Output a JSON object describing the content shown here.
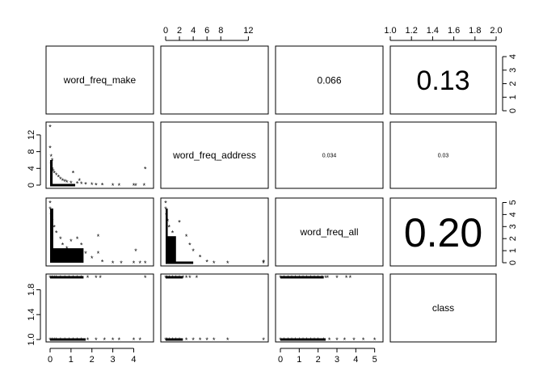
{
  "chart_data": {
    "type": "scatter",
    "matrix": "pairs",
    "variables": [
      "word_freq_make",
      "word_freq_address",
      "word_freq_all",
      "class"
    ],
    "ranges": {
      "word_freq_make": [
        0,
        4.6
      ],
      "word_freq_address": [
        0,
        14.3
      ],
      "word_freq_all": [
        0,
        5.1
      ],
      "class": [
        1,
        2
      ]
    },
    "ticks": {
      "word_freq_make": [
        0,
        1,
        2,
        3,
        4
      ],
      "word_freq_address": [
        0,
        2,
        4,
        6,
        8,
        12
      ],
      "word_freq_all": [
        0,
        1,
        2,
        3,
        4,
        5
      ],
      "class": [
        1.0,
        1.2,
        1.4,
        1.6,
        1.8,
        2.0
      ]
    },
    "tick_labels": {
      "word_freq_make_bottom": [
        "0",
        "1",
        "2",
        "3",
        "4"
      ],
      "word_freq_address_top": [
        "0",
        "2",
        "4",
        "6",
        "8",
        "12"
      ],
      "word_freq_all_bottom": [
        "0",
        "1",
        "2",
        "3",
        "4",
        "5"
      ],
      "class_top": [
        "1.0",
        "1.2",
        "1.4",
        "1.6",
        "1.8",
        "2.0"
      ],
      "word_freq_address_left": [
        "0",
        "4",
        "8",
        "12"
      ],
      "class_left": [
        "1.0",
        "1.4",
        "1.8"
      ],
      "word_freq_make_right": [
        "0",
        "1",
        "2",
        "3",
        "4"
      ],
      "word_freq_all_right": [
        "0",
        "1",
        "2",
        "3",
        "4",
        "5"
      ]
    },
    "correlations": [
      {
        "row": 0,
        "col": 1,
        "value": "",
        "font_size": 2
      },
      {
        "row": 0,
        "col": 2,
        "value": "0.066",
        "font_size": 12
      },
      {
        "row": 0,
        "col": 3,
        "value": "0.13",
        "font_size": 34
      },
      {
        "row": 1,
        "col": 2,
        "value": "0.034",
        "font_size": 7
      },
      {
        "row": 1,
        "col": 3,
        "value": "0.03",
        "font_size": 7
      },
      {
        "row": 2,
        "col": 3,
        "value": "0.20",
        "font_size": 50
      }
    ],
    "points": {
      "make_vs_address": [
        [
          0,
          14
        ],
        [
          0,
          9
        ],
        [
          0.05,
          7
        ],
        [
          0.1,
          6
        ],
        [
          0.05,
          5
        ],
        [
          0.1,
          4
        ],
        [
          0.15,
          3.5
        ],
        [
          0.2,
          3
        ],
        [
          0.3,
          2.5
        ],
        [
          0.4,
          2
        ],
        [
          0.5,
          1.5
        ],
        [
          0.6,
          1.2
        ],
        [
          0.7,
          1
        ],
        [
          0.8,
          0.8
        ],
        [
          1.0,
          0.6
        ],
        [
          1.1,
          3
        ],
        [
          1.3,
          0.5
        ],
        [
          1.4,
          1.2
        ],
        [
          1.5,
          0.4
        ],
        [
          1.7,
          0.3
        ],
        [
          2.0,
          0.2
        ],
        [
          2.2,
          0.1
        ],
        [
          2.5,
          0.1
        ],
        [
          3.0,
          0
        ],
        [
          3.3,
          0
        ],
        [
          4.0,
          0
        ],
        [
          4.1,
          0
        ],
        [
          4.5,
          0
        ],
        [
          4.55,
          4
        ]
      ],
      "make_vs_all": [
        [
          0,
          5
        ],
        [
          0,
          4.5
        ],
        [
          0.05,
          4
        ],
        [
          0.1,
          3.5
        ],
        [
          0.2,
          3
        ],
        [
          0.3,
          2.5
        ],
        [
          0.5,
          2
        ],
        [
          0.6,
          1.5
        ],
        [
          0.8,
          1.2
        ],
        [
          1.0,
          1.8
        ],
        [
          1.1,
          1
        ],
        [
          1.3,
          2.0
        ],
        [
          1.5,
          1.5
        ],
        [
          1.7,
          0.8
        ],
        [
          2.0,
          0.4
        ],
        [
          2.3,
          2.2
        ],
        [
          2.3,
          0.8
        ],
        [
          2.5,
          0.1
        ],
        [
          3.0,
          0
        ],
        [
          3.4,
          0
        ],
        [
          4.0,
          0
        ],
        [
          4.1,
          1
        ],
        [
          4.3,
          0
        ],
        [
          4.55,
          0
        ]
      ],
      "make_vs_class_spam": [
        0,
        0.1,
        0.2,
        0.3,
        0.5,
        0.7,
        0.9,
        1.1,
        1.3,
        1.5,
        1.8,
        2.2,
        2.4,
        4.55
      ],
      "make_vs_class_ham": [
        0,
        0.1,
        0.2,
        0.3,
        0.5,
        0.7,
        0.9,
        1.1,
        1.3,
        1.5,
        1.8,
        2.2,
        2.6,
        3.0,
        3.3,
        4.0,
        4.3
      ],
      "address_vs_all": [
        [
          0,
          5
        ],
        [
          0,
          4.5
        ],
        [
          0.1,
          4
        ],
        [
          0.3,
          3.5
        ],
        [
          0.5,
          3
        ],
        [
          1.0,
          2.5
        ],
        [
          2.0,
          3.4
        ],
        [
          3.0,
          2.2
        ],
        [
          3.5,
          1.5
        ],
        [
          4.0,
          1
        ],
        [
          5.0,
          0.5
        ],
        [
          6.0,
          0.1
        ],
        [
          7.0,
          0
        ],
        [
          9.0,
          0
        ],
        [
          14.2,
          0
        ],
        [
          14.2,
          0.1
        ]
      ],
      "address_vs_class_spam": [
        0,
        0.2,
        0.5,
        1.0,
        1.5,
        2.0,
        2.5,
        3.0,
        3.5,
        4.5
      ],
      "address_vs_class_ham": [
        0,
        0.2,
        0.5,
        1.0,
        1.5,
        2.0,
        3.0,
        4.0,
        5.0,
        6.0,
        7.0,
        9.0,
        14.2
      ],
      "all_vs_class_spam": [
        0,
        0.2,
        0.4,
        0.6,
        0.8,
        1.0,
        1.2,
        1.4,
        1.6,
        1.8,
        2.0,
        2.2,
        2.4,
        2.5,
        3.0,
        3.5,
        3.7
      ],
      "all_vs_class_ham": [
        0,
        0.2,
        0.4,
        0.6,
        0.8,
        1.0,
        1.2,
        1.4,
        1.6,
        1.8,
        2.0,
        2.3,
        2.6,
        3.0,
        3.4,
        3.9,
        4.4,
        5.0
      ]
    },
    "grid": false,
    "legend": "none"
  }
}
